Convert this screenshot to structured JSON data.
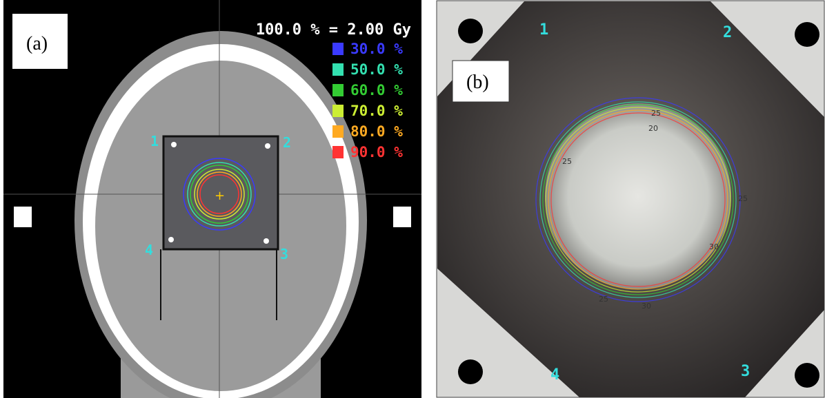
{
  "panel_a": {
    "label": "(a)",
    "dose_reference": "100.0 % = 2.00 Gy",
    "isodose_legend": [
      {
        "level": "30.0 %",
        "color": "#3a3aff"
      },
      {
        "level": "50.0 %",
        "color": "#33e0b0"
      },
      {
        "level": "60.0 %",
        "color": "#33cc33"
      },
      {
        "level": "70.0 %",
        "color": "#ccee33"
      },
      {
        "level": "80.0 %",
        "color": "#ffaa22"
      },
      {
        "level": "90.0 %",
        "color": "#ff3333"
      }
    ],
    "markers": [
      "1",
      "2",
      "3",
      "4"
    ]
  },
  "panel_b": {
    "label": "(b)",
    "markers": [
      "1",
      "2",
      "3",
      "4"
    ],
    "contour_labels": [
      "25",
      "20",
      "25",
      "30",
      "25",
      "30",
      "25"
    ]
  }
}
